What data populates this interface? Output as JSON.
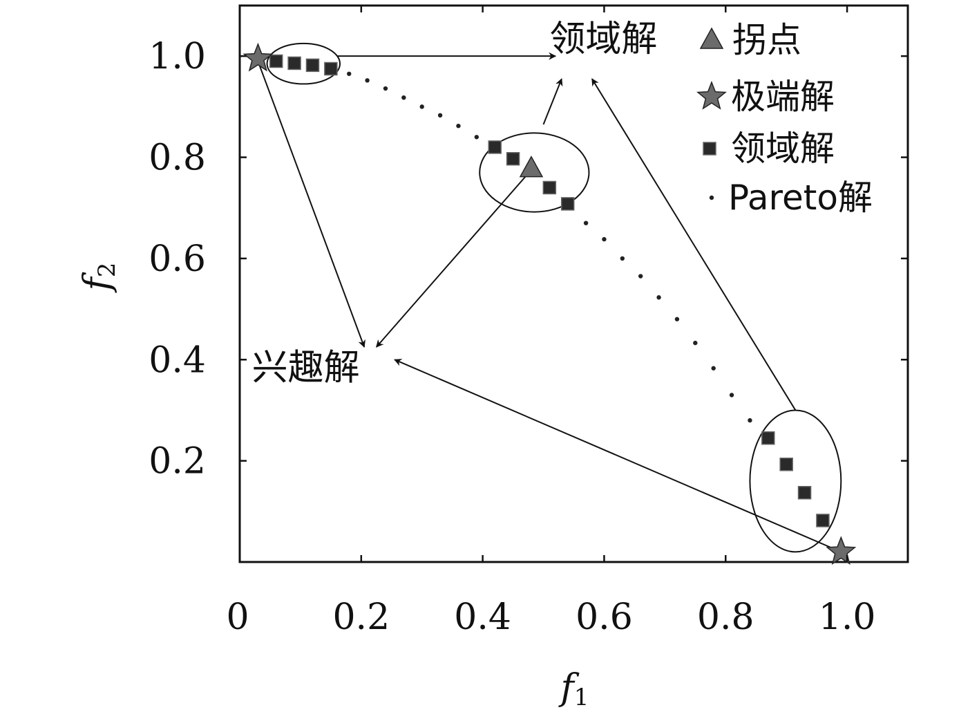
{
  "chart_data": {
    "type": "scatter",
    "title": "",
    "xlabel": "f",
    "xlabel_sub": "1",
    "ylabel": "f",
    "ylabel_sub": "2",
    "xlim": [
      0,
      1.1
    ],
    "ylim": [
      0,
      1.1
    ],
    "grid": false,
    "legend_position": "top-right",
    "x_ticks": [
      {
        "value": 0,
        "label": "0"
      },
      {
        "value": 0.2,
        "label": "0.2"
      },
      {
        "value": 0.4,
        "label": "0.4"
      },
      {
        "value": 0.6,
        "label": "0.6"
      },
      {
        "value": 0.8,
        "label": "0.8"
      },
      {
        "value": 1.0,
        "label": "1.0"
      }
    ],
    "y_ticks": [
      {
        "value": 0.2,
        "label": "0.2"
      },
      {
        "value": 0.4,
        "label": "0.4"
      },
      {
        "value": 0.6,
        "label": "0.6"
      },
      {
        "value": 0.8,
        "label": "0.8"
      },
      {
        "value": 1.0,
        "label": "1.0"
      }
    ],
    "legend": [
      {
        "label": "拐点",
        "marker": "triangle"
      },
      {
        "label": "极端解",
        "marker": "star"
      },
      {
        "label": "领域解",
        "marker": "square"
      },
      {
        "label": "Pareto解",
        "marker": "dot"
      }
    ],
    "series": [
      {
        "name": "Pareto解",
        "marker": "dot",
        "points": [
          [
            0.03,
            0.995
          ],
          [
            0.06,
            0.99
          ],
          [
            0.09,
            0.986
          ],
          [
            0.12,
            0.982
          ],
          [
            0.15,
            0.975
          ],
          [
            0.18,
            0.965
          ],
          [
            0.21,
            0.952
          ],
          [
            0.24,
            0.936
          ],
          [
            0.27,
            0.918
          ],
          [
            0.3,
            0.9
          ],
          [
            0.33,
            0.883
          ],
          [
            0.36,
            0.862
          ],
          [
            0.39,
            0.84
          ],
          [
            0.42,
            0.82
          ],
          [
            0.45,
            0.797
          ],
          [
            0.48,
            0.778
          ],
          [
            0.51,
            0.74
          ],
          [
            0.54,
            0.708
          ],
          [
            0.57,
            0.67
          ],
          [
            0.6,
            0.638
          ],
          [
            0.63,
            0.6
          ],
          [
            0.66,
            0.565
          ],
          [
            0.69,
            0.523
          ],
          [
            0.72,
            0.48
          ],
          [
            0.75,
            0.433
          ],
          [
            0.78,
            0.383
          ],
          [
            0.81,
            0.33
          ],
          [
            0.84,
            0.28
          ],
          [
            0.87,
            0.245
          ],
          [
            0.9,
            0.193
          ],
          [
            0.93,
            0.137
          ],
          [
            0.96,
            0.082
          ],
          [
            0.99,
            0.02
          ]
        ]
      },
      {
        "name": "领域解",
        "marker": "square",
        "points": [
          [
            0.06,
            0.99
          ],
          [
            0.09,
            0.986
          ],
          [
            0.12,
            0.982
          ],
          [
            0.15,
            0.975
          ],
          [
            0.42,
            0.82
          ],
          [
            0.45,
            0.797
          ],
          [
            0.51,
            0.74
          ],
          [
            0.54,
            0.708
          ],
          [
            0.87,
            0.245
          ],
          [
            0.9,
            0.193
          ],
          [
            0.93,
            0.137
          ],
          [
            0.96,
            0.082
          ]
        ]
      },
      {
        "name": "拐点",
        "marker": "triangle",
        "points": [
          [
            0.48,
            0.778
          ]
        ]
      },
      {
        "name": "极端解",
        "marker": "star",
        "points": [
          [
            0.03,
            0.995
          ],
          [
            0.99,
            0.02
          ]
        ]
      }
    ],
    "ellipses": [
      {
        "cx": 0.105,
        "cy": 0.985,
        "rx": 0.06,
        "ry": 0.04
      },
      {
        "cx": 0.485,
        "cy": 0.77,
        "rx": 0.09,
        "ry": 0.078
      },
      {
        "cx": 0.915,
        "cy": 0.16,
        "rx": 0.075,
        "ry": 0.14
      }
    ],
    "annotations": [
      {
        "text": "领域解",
        "x": 0.51,
        "y": 1.01
      },
      {
        "text": "兴趣解",
        "x": 0.02,
        "y": 0.36
      }
    ],
    "arrows": [
      {
        "from": [
          0.16,
          1.0
        ],
        "to": [
          0.52,
          1.0
        ]
      },
      {
        "from": [
          0.5,
          0.865
        ],
        "to": [
          0.53,
          0.955
        ]
      },
      {
        "from": [
          0.915,
          0.3
        ],
        "to": [
          0.58,
          0.955
        ]
      },
      {
        "from": [
          0.03,
          0.99
        ],
        "to": [
          0.205,
          0.425
        ]
      },
      {
        "from": [
          0.48,
          0.775
        ],
        "to": [
          0.225,
          0.425
        ]
      },
      {
        "from": [
          0.99,
          0.02
        ],
        "to": [
          0.255,
          0.4
        ]
      }
    ]
  }
}
